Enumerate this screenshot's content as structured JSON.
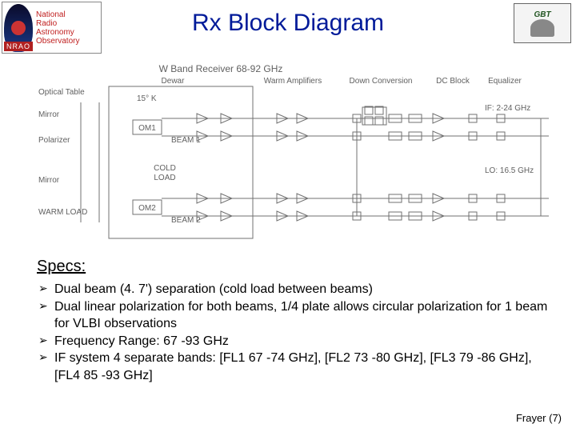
{
  "header": {
    "title": "Rx Block Diagram",
    "left_logo": {
      "line1": "National",
      "line2": "Radio",
      "line3": "Astronomy",
      "line4": "Observatory",
      "nrao": "NRAO"
    },
    "right_logo": {
      "label": "GBT"
    }
  },
  "diagram": {
    "stroke": "#707070",
    "text_color": "#606060",
    "font_size": 10,
    "title": "W Band Receiver 68-92 GHz",
    "left_labels": [
      "Optical Table",
      "Mirror",
      "Polarizer",
      "Mirror",
      "WARM LOAD"
    ],
    "dewar": {
      "label": "Dewar",
      "temp": "15° K",
      "om_top": "OM1",
      "om_bot": "OM2",
      "beam_top": "BEAM 1",
      "beam_bot": "BEAM 2",
      "cold_load": "COLD LOAD"
    },
    "section_labels": [
      "Warm Amplifiers",
      "Down Conversion",
      "DC Block",
      "Equalizer"
    ],
    "if_label": "IF: 2-24 GHz",
    "lo_label": "LO: 16.5 GHz"
  },
  "specs": {
    "heading": "Specs:",
    "items": [
      "Dual beam (4. 7') separation (cold load between beams)",
      "Dual linear polarization for both beams, 1/4 plate allows circular polarization for 1 beam for VLBI observations",
      "Frequency Range: 67 -93 GHz",
      "IF system 4 separate bands: [FL1 67 -74 GHz], [FL2 73 -80 GHz], [FL3 79 -86 GHz],  [FL4 85 -93 GHz]"
    ]
  },
  "footer": "Frayer  (7)"
}
